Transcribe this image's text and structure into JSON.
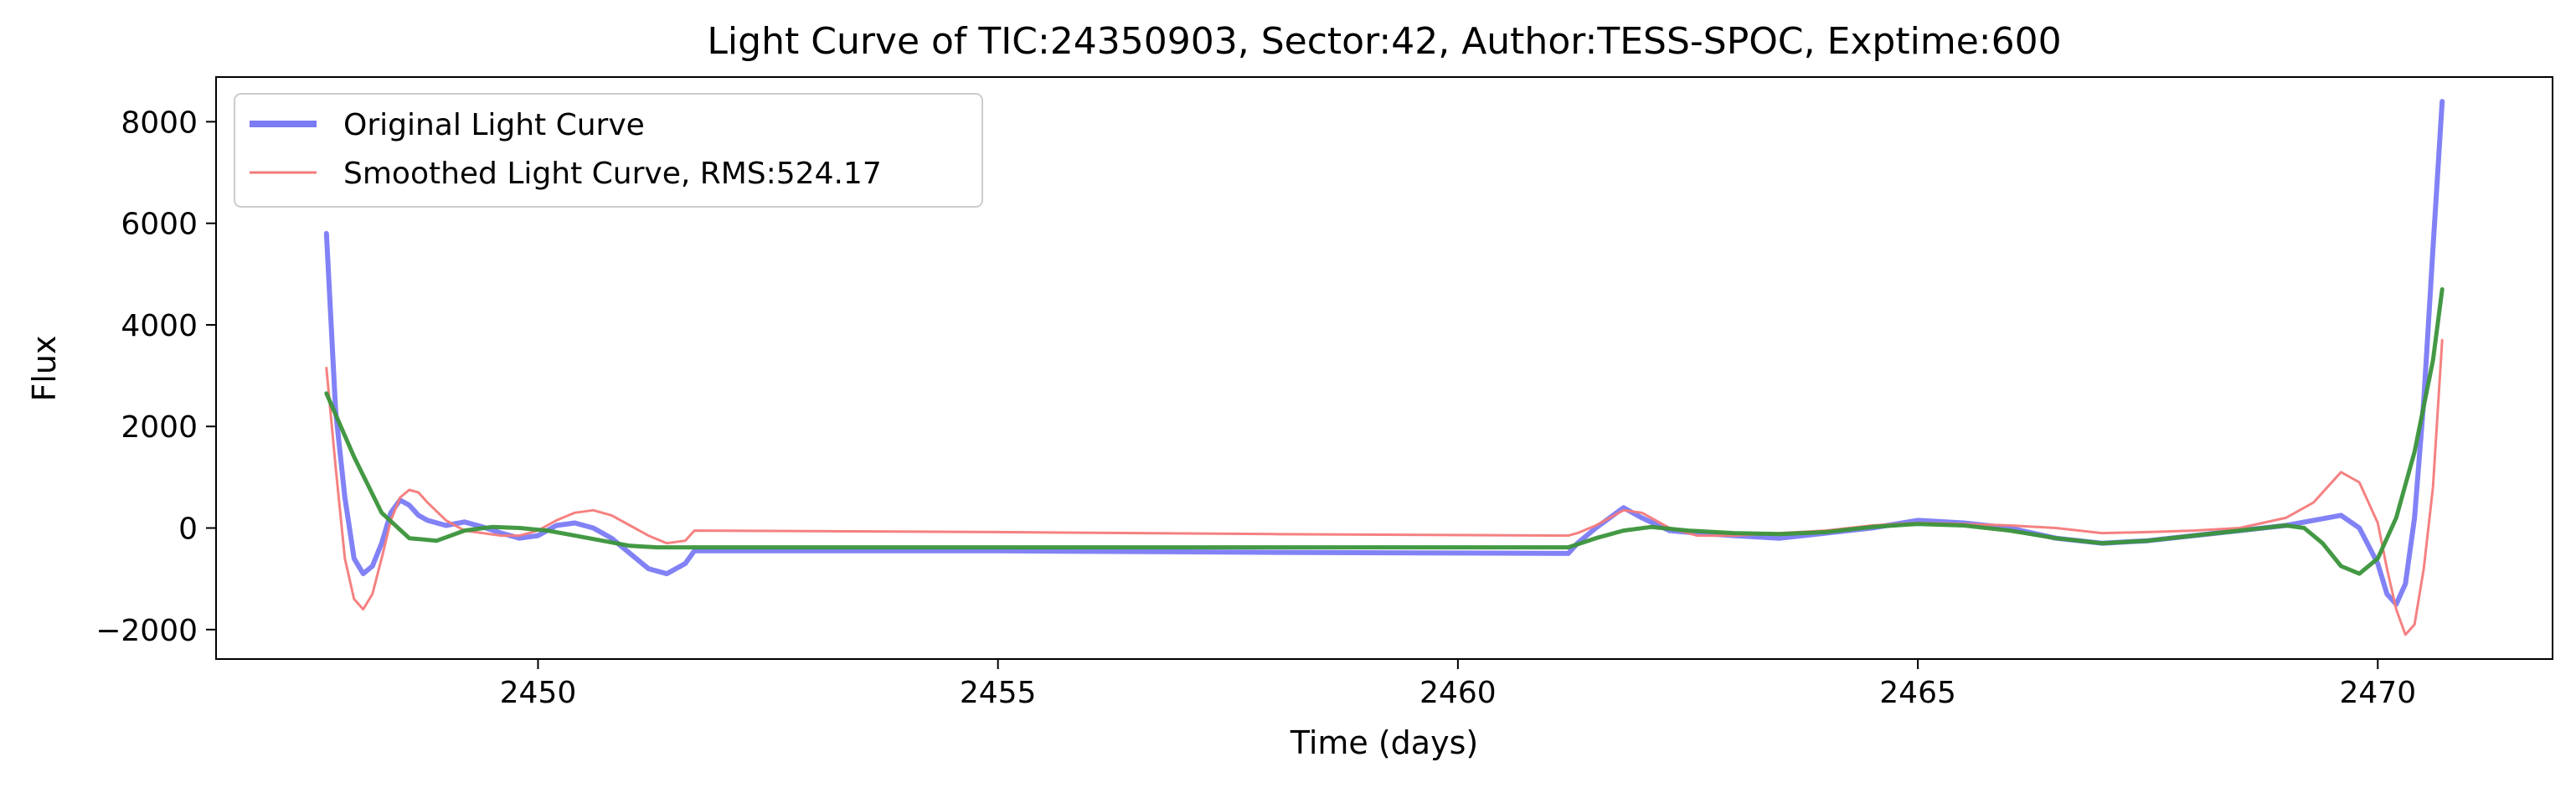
{
  "chart_data": {
    "type": "line",
    "title": "Light Curve of TIC:24350903, Sector:42, Author:TESS-SPOC, Exptime:600",
    "xlabel": "Time (days)",
    "ylabel": "Flux",
    "xlim": [
      2446.5,
      2471.9
    ],
    "ylim": [
      -2580,
      8880
    ],
    "xticks": [
      2450,
      2455,
      2460,
      2465,
      2470
    ],
    "xtick_labels": [
      "2450",
      "2455",
      "2460",
      "2465",
      "2470"
    ],
    "yticks": [
      -2000,
      0,
      2000,
      4000,
      6000,
      8000
    ],
    "ytick_labels": [
      "−2000",
      "0",
      "2000",
      "4000",
      "6000",
      "8000"
    ],
    "grid": false,
    "legend_position": "top-left",
    "series": [
      {
        "name": "Original Light Curve",
        "color": "#7b7bf5",
        "style": "thick",
        "x": [
          2447.7,
          2447.8,
          2447.9,
          2448.0,
          2448.1,
          2448.2,
          2448.3,
          2448.4,
          2448.5,
          2448.6,
          2448.7,
          2448.8,
          2449.0,
          2449.2,
          2449.4,
          2449.6,
          2449.8,
          2450.0,
          2450.2,
          2450.4,
          2450.6,
          2450.8,
          2451.0,
          2451.2,
          2451.4,
          2451.6,
          2451.7,
          2455.0,
          2458.0,
          2461.2,
          2461.3,
          2461.5,
          2461.8,
          2462.0,
          2462.3,
          2462.6,
          2463.0,
          2463.5,
          2464.0,
          2464.5,
          2465.0,
          2465.5,
          2466.0,
          2466.5,
          2467.0,
          2467.5,
          2468.0,
          2468.5,
          2469.0,
          2469.3,
          2469.6,
          2469.8,
          2470.0,
          2470.1,
          2470.2,
          2470.3,
          2470.4,
          2470.5,
          2470.6,
          2470.7
        ],
        "y": [
          5800,
          2300,
          600,
          -600,
          -900,
          -750,
          -300,
          300,
          550,
          450,
          250,
          150,
          50,
          120,
          20,
          -100,
          -200,
          -150,
          50,
          100,
          0,
          -200,
          -500,
          -800,
          -900,
          -700,
          -450,
          -450,
          -480,
          -500,
          -300,
          0,
          400,
          200,
          -50,
          -100,
          -150,
          -200,
          -100,
          0,
          150,
          100,
          0,
          -200,
          -300,
          -250,
          -150,
          -50,
          50,
          150,
          250,
          0,
          -700,
          -1300,
          -1500,
          -1100,
          200,
          2500,
          5500,
          8400
        ]
      },
      {
        "name": "Smoothed Light Curve, RMS:524.17",
        "color": "#f47a7a",
        "style": "thin",
        "x": [
          2447.7,
          2447.8,
          2447.9,
          2448.0,
          2448.1,
          2448.2,
          2448.3,
          2448.4,
          2448.5,
          2448.6,
          2448.7,
          2448.8,
          2449.0,
          2449.2,
          2449.4,
          2449.6,
          2449.8,
          2450.0,
          2450.2,
          2450.4,
          2450.6,
          2450.8,
          2451.0,
          2451.2,
          2451.4,
          2451.6,
          2451.7,
          2455.0,
          2458.0,
          2461.2,
          2461.3,
          2461.5,
          2461.8,
          2462.0,
          2462.3,
          2462.6,
          2463.0,
          2463.5,
          2464.0,
          2464.5,
          2465.0,
          2465.5,
          2466.0,
          2466.5,
          2467.0,
          2467.5,
          2468.0,
          2468.5,
          2469.0,
          2469.3,
          2469.6,
          2469.8,
          2470.0,
          2470.1,
          2470.2,
          2470.3,
          2470.4,
          2470.5,
          2470.6,
          2470.7
        ],
        "y": [
          3150,
          1200,
          -600,
          -1400,
          -1600,
          -1300,
          -600,
          150,
          600,
          750,
          700,
          500,
          150,
          -50,
          -100,
          -150,
          -150,
          -50,
          150,
          300,
          350,
          250,
          50,
          -150,
          -300,
          -250,
          -50,
          -80,
          -120,
          -150,
          -100,
          50,
          350,
          300,
          0,
          -150,
          -150,
          -100,
          -50,
          50,
          100,
          80,
          50,
          0,
          -100,
          -80,
          -50,
          0,
          200,
          500,
          1100,
          900,
          100,
          -800,
          -1600,
          -2100,
          -1900,
          -800,
          800,
          3700
        ]
      },
      {
        "name": "",
        "color": "#3a943a",
        "style": "medium",
        "x": [
          2447.7,
          2448.0,
          2448.3,
          2448.6,
          2448.9,
          2449.2,
          2449.5,
          2449.8,
          2450.1,
          2450.4,
          2450.7,
          2451.0,
          2451.3,
          2451.7,
          2455.0,
          2458.0,
          2461.2,
          2461.5,
          2461.8,
          2462.1,
          2462.5,
          2463.0,
          2463.5,
          2464.0,
          2464.5,
          2465.0,
          2465.5,
          2466.0,
          2466.5,
          2467.0,
          2467.5,
          2468.0,
          2468.5,
          2469.0,
          2469.2,
          2469.4,
          2469.6,
          2469.8,
          2470.0,
          2470.2,
          2470.4,
          2470.6,
          2470.7
        ],
        "y": [
          2650,
          1400,
          300,
          -200,
          -250,
          -50,
          20,
          0,
          -50,
          -150,
          -250,
          -350,
          -380,
          -380,
          -380,
          -380,
          -380,
          -200,
          -50,
          20,
          -50,
          -100,
          -120,
          -80,
          20,
          80,
          50,
          -50,
          -200,
          -300,
          -250,
          -150,
          -50,
          50,
          0,
          -300,
          -750,
          -900,
          -600,
          200,
          1500,
          3300,
          4700
        ]
      }
    ]
  }
}
